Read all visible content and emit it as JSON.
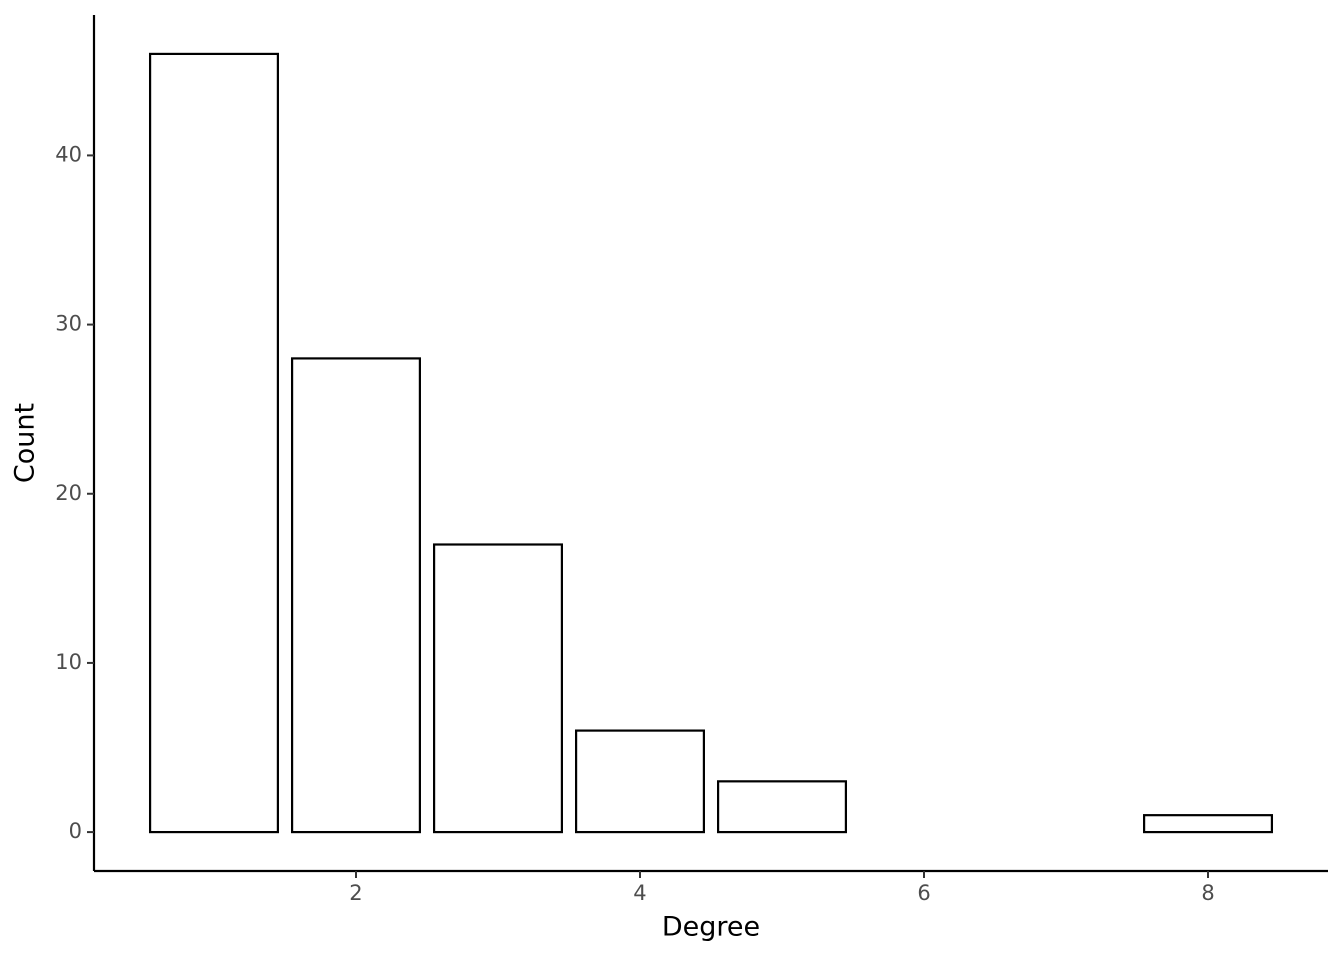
{
  "chart_data": {
    "type": "bar",
    "x_label": "Degree",
    "y_label": "Count",
    "x": [
      1,
      2,
      3,
      4,
      5,
      8
    ],
    "values": [
      46,
      28,
      17,
      6,
      3,
      1
    ],
    "color": "#ffffff",
    "edge_color": "#000000",
    "xlim": [
      0.155,
      8.845
    ],
    "xticks": [
      2,
      4,
      6,
      8
    ],
    "ylim": [
      -2.3,
      48.3
    ],
    "yticks": [
      0,
      10,
      20,
      30,
      40
    ],
    "grid": false
  }
}
